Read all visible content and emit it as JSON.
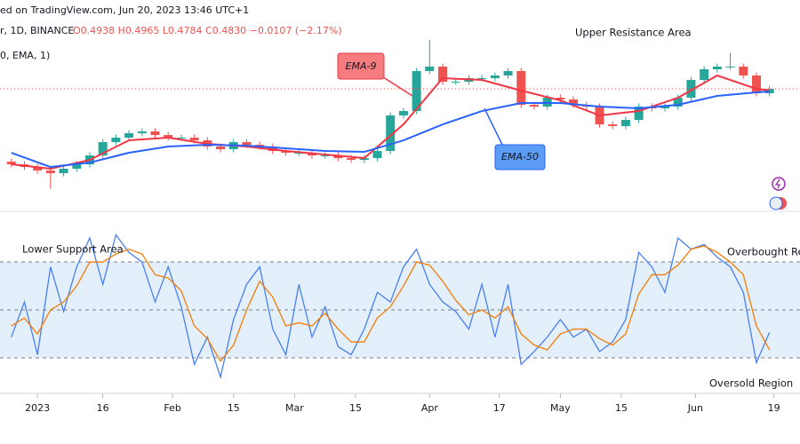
{
  "header": {
    "source": "ed on TradingView.com, Jun 20, 2023 13:46 UTC+1",
    "symbol": "r, 1D, BINANCE",
    "ohlc": "O0.4938 H0.4965 L0.4784 C0.4830 −0.0107 (−2.17%)",
    "indicator": "0, EMA, 1)"
  },
  "chart_data": [
    {
      "type": "candlestick",
      "annotations": [
        "Upper Resistance Area"
      ],
      "up_color": "#26a69a",
      "down_color": "#ef5350",
      "xlim": [
        -8.6,
        175
      ],
      "ylim": [
        0.257,
        0.6615
      ],
      "x": [
        -6,
        -3,
        0,
        3,
        6,
        9,
        12,
        15,
        18,
        21,
        24,
        27,
        30,
        33,
        36,
        39,
        42,
        45,
        48,
        51,
        54,
        57,
        60,
        63,
        66,
        69,
        72,
        75,
        78,
        81,
        84,
        87,
        90,
        93,
        96,
        99,
        102,
        105,
        108,
        111,
        114,
        117,
        120,
        123,
        126,
        129,
        132,
        135,
        138,
        141,
        144,
        147,
        150,
        153,
        156,
        159,
        162,
        165,
        168
      ],
      "open": [
        0.352,
        0.347,
        0.3419,
        0.3351,
        0.33,
        0.3385,
        0.347,
        0.364,
        0.3895,
        0.398,
        0.4065,
        0.4099,
        0.4031,
        0.398,
        0.398,
        0.3929,
        0.381,
        0.3759,
        0.3895,
        0.3844,
        0.381,
        0.3725,
        0.3691,
        0.3691,
        0.364,
        0.364,
        0.3589,
        0.3555,
        0.3589,
        0.3725,
        0.4405,
        0.449,
        0.5255,
        0.534,
        0.5051,
        0.5051,
        0.5119,
        0.5119,
        0.517,
        0.5255,
        0.4609,
        0.4575,
        0.4745,
        0.4711,
        0.4609,
        0.4575,
        0.4235,
        0.4201,
        0.432,
        0.4575,
        0.4541,
        0.4575,
        0.4745,
        0.5085,
        0.5289,
        0.534,
        0.534,
        0.517,
        0.483
      ],
      "high": [
        0.358,
        0.353,
        0.3479,
        0.3411,
        0.3445,
        0.353,
        0.37,
        0.3955,
        0.404,
        0.4125,
        0.4159,
        0.4159,
        0.4091,
        0.404,
        0.404,
        0.3989,
        0.387,
        0.3955,
        0.3955,
        0.3904,
        0.387,
        0.3785,
        0.3751,
        0.3751,
        0.37,
        0.37,
        0.3649,
        0.3649,
        0.3785,
        0.4465,
        0.455,
        0.5315,
        0.585,
        0.54,
        0.5111,
        0.5179,
        0.5179,
        0.523,
        0.5315,
        0.5315,
        0.4669,
        0.4805,
        0.4805,
        0.4771,
        0.4669,
        0.4635,
        0.4295,
        0.438,
        0.4635,
        0.4635,
        0.4635,
        0.4805,
        0.5145,
        0.5349,
        0.54,
        0.56,
        0.54,
        0.523,
        0.4975
      ],
      "low": [
        0.341,
        0.3359,
        0.3291,
        0.3,
        0.324,
        0.3325,
        0.341,
        0.358,
        0.3835,
        0.392,
        0.4005,
        0.3971,
        0.392,
        0.392,
        0.3869,
        0.375,
        0.3699,
        0.3699,
        0.3784,
        0.375,
        0.3665,
        0.3631,
        0.3631,
        0.358,
        0.358,
        0.3529,
        0.3495,
        0.3495,
        0.3529,
        0.3665,
        0.4345,
        0.443,
        0.5195,
        0.4991,
        0.4991,
        0.4991,
        0.5059,
        0.5059,
        0.511,
        0.4549,
        0.4515,
        0.4515,
        0.4651,
        0.4549,
        0.4515,
        0.4175,
        0.4141,
        0.4141,
        0.426,
        0.4481,
        0.4481,
        0.4515,
        0.4685,
        0.5025,
        0.5229,
        0.528,
        0.511,
        0.477,
        0.477
      ],
      "close": [
        0.347,
        0.3419,
        0.3351,
        0.33,
        0.3385,
        0.347,
        0.364,
        0.3895,
        0.398,
        0.4065,
        0.4099,
        0.4031,
        0.398,
        0.398,
        0.3929,
        0.381,
        0.3759,
        0.3895,
        0.3844,
        0.381,
        0.3725,
        0.3691,
        0.3691,
        0.364,
        0.364,
        0.3589,
        0.3555,
        0.3589,
        0.3725,
        0.4405,
        0.449,
        0.5255,
        0.534,
        0.5051,
        0.5051,
        0.5119,
        0.5119,
        0.517,
        0.5255,
        0.4609,
        0.4575,
        0.4745,
        0.4711,
        0.4609,
        0.4575,
        0.4235,
        0.4201,
        0.432,
        0.4575,
        0.4541,
        0.4575,
        0.4745,
        0.5085,
        0.5289,
        0.534,
        0.534,
        0.517,
        0.483,
        0.4915
      ],
      "series": [
        {
          "name": "EMA-9",
          "color": "#f23645",
          "x": [
            -6,
            3,
            12,
            21,
            30,
            39,
            48,
            57,
            66,
            75,
            84,
            93,
            102,
            111,
            120,
            129,
            138,
            147,
            156,
            165,
            168
          ],
          "values": [
            0.347,
            0.3385,
            0.3555,
            0.3929,
            0.398,
            0.3861,
            0.381,
            0.3725,
            0.3657,
            0.3589,
            0.4235,
            0.5119,
            0.5085,
            0.4881,
            0.4694,
            0.4405,
            0.449,
            0.4745,
            0.517,
            0.4915,
            0.4881
          ]
        },
        {
          "name": "EMA-50",
          "color": "#2962ff",
          "x": [
            -6,
            3,
            12,
            21,
            30,
            39,
            48,
            57,
            66,
            75,
            84,
            93,
            102,
            111,
            120,
            129,
            138,
            147,
            156,
            165,
            168
          ],
          "values": [
            0.3691,
            0.3419,
            0.3504,
            0.3691,
            0.381,
            0.3844,
            0.3827,
            0.3776,
            0.3725,
            0.3708,
            0.3929,
            0.4235,
            0.449,
            0.4643,
            0.4643,
            0.4575,
            0.4541,
            0.4609,
            0.4779,
            0.4847,
            0.4864
          ]
        }
      ]
    },
    {
      "type": "line",
      "annotations": [
        "Lower Support Area",
        "Overbought Reg",
        "Oversold Region"
      ],
      "xlim": [
        -8.6,
        175
      ],
      "ylim": [
        -2.2,
        107.8
      ],
      "levels": [
        80,
        50,
        20
      ],
      "band_color": "#e3f0fc",
      "xticks": [
        {
          "value": 0,
          "label": "2023"
        },
        {
          "value": 15,
          "label": "16"
        },
        {
          "value": 31,
          "label": "Feb"
        },
        {
          "value": 45,
          "label": "15"
        },
        {
          "value": 59,
          "label": "Mar"
        },
        {
          "value": 73,
          "label": "15"
        },
        {
          "value": 90,
          "label": "Apr"
        },
        {
          "value": 106,
          "label": "17"
        },
        {
          "value": 120,
          "label": "May"
        },
        {
          "value": 134,
          "label": "15"
        },
        {
          "value": 151,
          "label": "Jun"
        },
        {
          "value": 169,
          "label": "19"
        }
      ],
      "x": [
        -6,
        -3,
        0,
        3,
        6,
        9,
        12,
        15,
        18,
        21,
        24,
        27,
        30,
        33,
        36,
        39,
        42,
        45,
        48,
        51,
        54,
        57,
        60,
        63,
        66,
        69,
        72,
        75,
        78,
        81,
        84,
        87,
        90,
        93,
        96,
        99,
        102,
        105,
        108,
        111,
        114,
        117,
        120,
        123,
        126,
        129,
        132,
        135,
        138,
        141,
        144,
        147,
        150,
        153,
        156,
        159,
        162,
        165,
        168
      ],
      "series": [
        {
          "color": "#4a7ff0",
          "values": [
            33,
            55,
            22,
            77,
            49,
            77,
            95,
            66,
            97,
            86,
            80,
            55,
            77,
            52,
            16,
            33,
            8,
            44,
            66,
            77,
            38,
            22,
            66,
            33,
            52,
            27,
            22,
            38,
            61,
            55,
            77,
            88,
            66,
            55,
            49,
            38,
            66,
            33,
            66,
            16,
            24,
            33,
            44,
            33,
            38,
            24,
            30,
            44,
            86,
            77,
            61,
            95,
            88,
            91,
            83,
            77,
            61,
            17,
            36
          ]
        },
        {
          "color": "#f57c00",
          "values": [
            40,
            45,
            35,
            50,
            55,
            65,
            80,
            80,
            85,
            88,
            85,
            72,
            70,
            62,
            40,
            32,
            18,
            28,
            50,
            68,
            58,
            40,
            42,
            40,
            48,
            38,
            30,
            30,
            45,
            52,
            65,
            80,
            78,
            68,
            56,
            47,
            50,
            45,
            52,
            35,
            28,
            25,
            35,
            38,
            38,
            32,
            28,
            35,
            60,
            72,
            72,
            78,
            88,
            90,
            86,
            80,
            72,
            40,
            25
          ]
        }
      ]
    }
  ]
}
